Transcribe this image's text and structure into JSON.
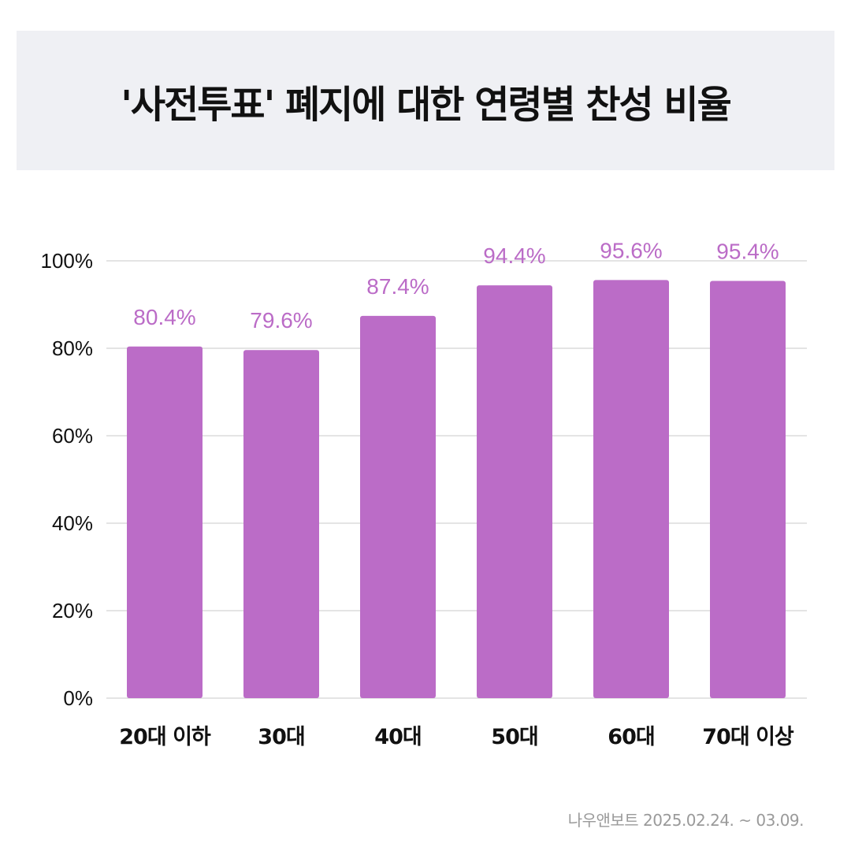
{
  "title": "'사전투표' 폐지에 대한 연령별 찬성 비율",
  "source": "나우앤보트 2025.02.24. ~ 03.09.",
  "colors": {
    "bar": "#bb6cc7",
    "value_label": "#bb6cc7",
    "header_bg": "#eff0f4",
    "grid": "#d4d4d4",
    "axis_text": "#111111",
    "source_text": "#9a9a9a"
  },
  "chart_data": {
    "type": "bar",
    "categories": [
      "20대 이하",
      "30대",
      "40대",
      "50대",
      "60대",
      "70대 이상"
    ],
    "values": [
      80.4,
      79.6,
      87.4,
      94.4,
      95.6,
      95.4
    ],
    "value_labels": [
      "80.4%",
      "79.6%",
      "87.4%",
      "94.4%",
      "95.6%",
      "95.4%"
    ],
    "yticks": [
      0,
      20,
      40,
      60,
      80,
      100
    ],
    "ytick_labels": [
      "0%",
      "20%",
      "40%",
      "60%",
      "80%",
      "100%"
    ],
    "ylim": [
      0,
      100
    ],
    "grid": true
  }
}
